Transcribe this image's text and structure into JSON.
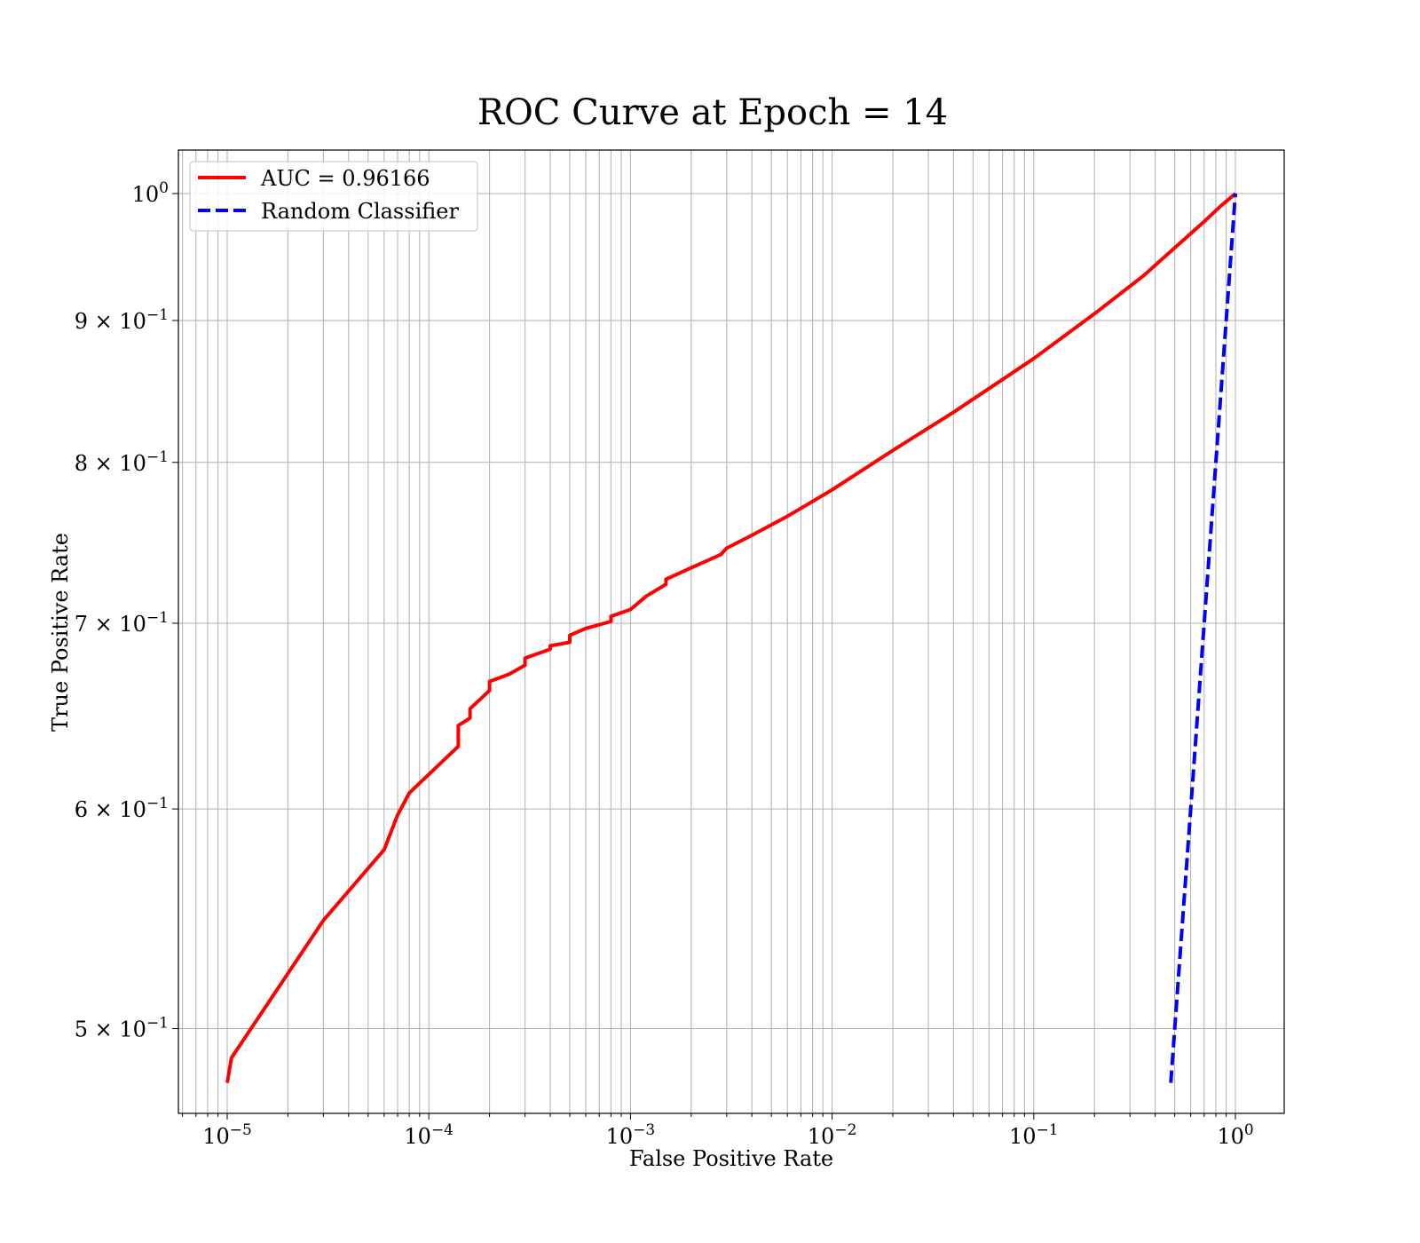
{
  "chart_data": {
    "type": "line",
    "title": "ROC Curve at Epoch = 14",
    "xlabel": "False Positive Rate",
    "ylabel": "True Positive Rate",
    "xscale": "log",
    "yscale": "log",
    "xlim": [
      6.3e-06,
      1.6
    ],
    "ylim": [
      0.478,
      1.04
    ],
    "grid": "both (major and minor)",
    "legend_position": "top-left",
    "x_tick_labels": [
      {
        "value": 1e-05,
        "base": "10",
        "exp": "−5"
      },
      {
        "value": 0.0001,
        "base": "10",
        "exp": "−4"
      },
      {
        "value": 0.001,
        "base": "10",
        "exp": "−3"
      },
      {
        "value": 0.01,
        "base": "10",
        "exp": "−2"
      },
      {
        "value": 0.1,
        "base": "10",
        "exp": "−1"
      },
      {
        "value": 1,
        "base": "10",
        "exp": "0"
      }
    ],
    "y_tick_labels": [
      {
        "value": 1.0,
        "base": "10",
        "exp": "0"
      },
      {
        "value": 0.9,
        "base": "9 × 10",
        "exp": "−1"
      },
      {
        "value": 0.8,
        "base": "8 × 10",
        "exp": "−1"
      },
      {
        "value": 0.7,
        "base": "7 × 10",
        "exp": "−1"
      },
      {
        "value": 0.6,
        "base": "6 × 10",
        "exp": "−1"
      },
      {
        "value": 0.5,
        "base": "5 × 10",
        "exp": "−1"
      }
    ],
    "series": [
      {
        "name": "AUC = 0.96166",
        "color": "#ff0000",
        "style": "solid",
        "x": [
          1e-05,
          1.05e-05,
          3e-05,
          6e-05,
          7e-05,
          8e-05,
          0.00014,
          0.00014,
          0.00016,
          0.00016,
          0.0002,
          0.0002,
          0.00025,
          0.0003,
          0.0003,
          0.0004,
          0.0004,
          0.0005,
          0.0005,
          0.0006,
          0.0008,
          0.0008,
          0.001,
          0.0012,
          0.0015,
          0.0015,
          0.002,
          0.0028,
          0.003,
          0.004,
          0.006,
          0.01,
          0.02,
          0.04,
          0.07,
          0.1,
          0.2,
          0.35,
          0.5,
          0.7,
          0.85,
          1.0
        ],
        "y": [
          0.478,
          0.488,
          0.547,
          0.58,
          0.597,
          0.608,
          0.632,
          0.643,
          0.647,
          0.652,
          0.662,
          0.667,
          0.671,
          0.676,
          0.68,
          0.685,
          0.687,
          0.689,
          0.693,
          0.697,
          0.701,
          0.704,
          0.708,
          0.716,
          0.723,
          0.726,
          0.733,
          0.741,
          0.745,
          0.753,
          0.765,
          0.782,
          0.808,
          0.834,
          0.857,
          0.872,
          0.905,
          0.934,
          0.956,
          0.977,
          0.99,
          1.0
        ]
      },
      {
        "name": "Random Classifier",
        "color": "#0000ff",
        "style": "dashed",
        "x": [
          0.478,
          1.0
        ],
        "y": [
          0.478,
          1.0
        ]
      }
    ]
  }
}
